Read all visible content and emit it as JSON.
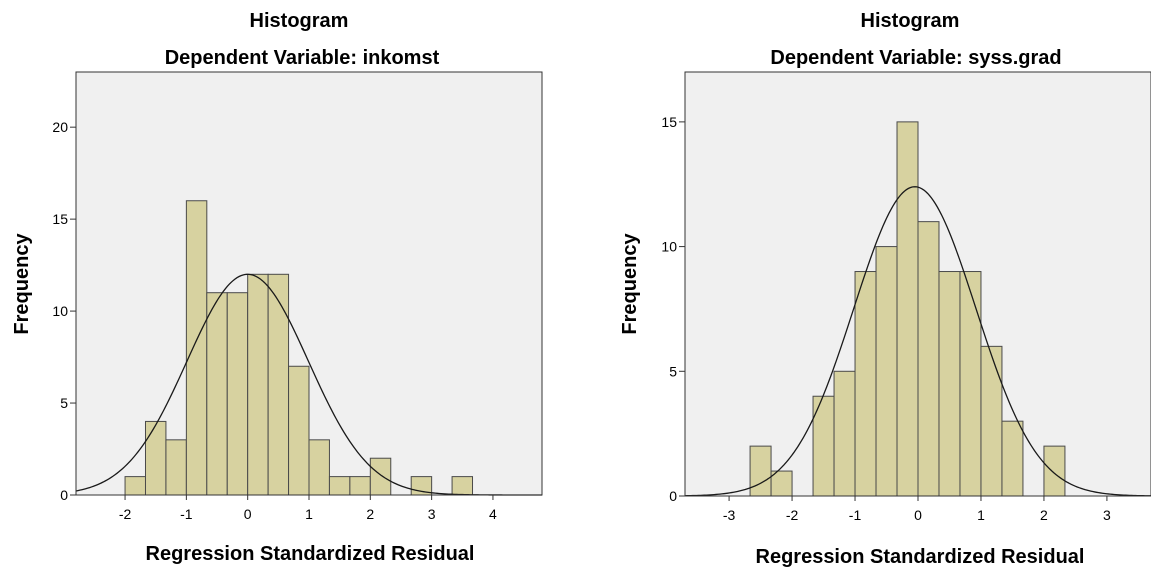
{
  "chart_data": [
    {
      "type": "histogram",
      "title": "Histogram",
      "subtitle": "Dependent Variable: inkomst",
      "xlabel": "Regression Standardized Residual",
      "ylabel": "Frequency",
      "xlim": [
        -2.8,
        4.8
      ],
      "ylim": [
        0,
        23
      ],
      "xticks": [
        -2,
        -1,
        0,
        1,
        2,
        3,
        4
      ],
      "yticks": [
        0,
        5,
        10,
        15,
        20
      ],
      "bin_width": 0.3333,
      "bins": [
        {
          "x0": -2.0,
          "count": 1
        },
        {
          "x0": -1.6667,
          "count": 4
        },
        {
          "x0": -1.3333,
          "count": 3
        },
        {
          "x0": -1.0,
          "count": 16
        },
        {
          "x0": -0.6667,
          "count": 11
        },
        {
          "x0": -0.3333,
          "count": 11
        },
        {
          "x0": 0.0,
          "count": 12
        },
        {
          "x0": 0.3333,
          "count": 12
        },
        {
          "x0": 0.6667,
          "count": 7
        },
        {
          "x0": 1.0,
          "count": 3
        },
        {
          "x0": 1.3333,
          "count": 1
        },
        {
          "x0": 1.6667,
          "count": 1
        },
        {
          "x0": 2.0,
          "count": 2
        },
        {
          "x0": 2.6667,
          "count": 1
        },
        {
          "x0": 3.3333,
          "count": 1
        }
      ],
      "normal_curve": {
        "mean": 0,
        "sd": 0.99,
        "peak": 12.0
      },
      "grid": false,
      "legend": "none"
    },
    {
      "type": "histogram",
      "title": "Histogram",
      "subtitle": "Dependent Variable: syss.grad",
      "xlabel": "Regression Standardized Residual",
      "ylabel": "Frequency",
      "xlim": [
        -3.7,
        3.7
      ],
      "ylim": [
        0,
        17
      ],
      "xticks": [
        -3,
        -2,
        -1,
        0,
        1,
        2,
        3
      ],
      "yticks": [
        0,
        5,
        10,
        15
      ],
      "bin_width": 0.3333,
      "bins": [
        {
          "x0": -2.6667,
          "count": 2
        },
        {
          "x0": -2.3333,
          "count": 1
        },
        {
          "x0": -1.6667,
          "count": 4
        },
        {
          "x0": -1.3333,
          "count": 5
        },
        {
          "x0": -1.0,
          "count": 9
        },
        {
          "x0": -0.6667,
          "count": 10
        },
        {
          "x0": -0.3333,
          "count": 15
        },
        {
          "x0": 0.0,
          "count": 11
        },
        {
          "x0": 0.3333,
          "count": 9
        },
        {
          "x0": 0.6667,
          "count": 9
        },
        {
          "x0": 1.0,
          "count": 6
        },
        {
          "x0": 1.3333,
          "count": 3
        },
        {
          "x0": 2.0,
          "count": 2
        }
      ],
      "normal_curve": {
        "mean": -0.05,
        "sd": 0.97,
        "peak": 12.4
      },
      "grid": false,
      "legend": "none"
    }
  ]
}
